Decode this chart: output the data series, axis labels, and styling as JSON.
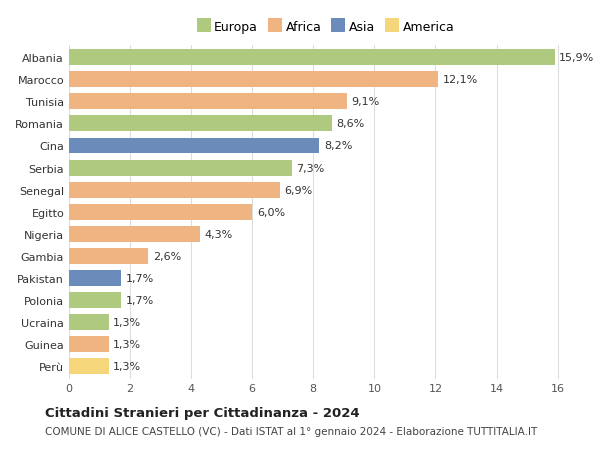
{
  "countries": [
    "Albania",
    "Marocco",
    "Tunisia",
    "Romania",
    "Cina",
    "Serbia",
    "Senegal",
    "Egitto",
    "Nigeria",
    "Gambia",
    "Pakistan",
    "Polonia",
    "Ucraina",
    "Guinea",
    "Perù"
  ],
  "values": [
    15.9,
    12.1,
    9.1,
    8.6,
    8.2,
    7.3,
    6.9,
    6.0,
    4.3,
    2.6,
    1.7,
    1.7,
    1.3,
    1.3,
    1.3
  ],
  "labels": [
    "15,9%",
    "12,1%",
    "9,1%",
    "8,6%",
    "8,2%",
    "7,3%",
    "6,9%",
    "6,0%",
    "4,3%",
    "2,6%",
    "1,7%",
    "1,7%",
    "1,3%",
    "1,3%",
    "1,3%"
  ],
  "continents": [
    "Europa",
    "Africa",
    "Africa",
    "Europa",
    "Asia",
    "Europa",
    "Africa",
    "Africa",
    "Africa",
    "Africa",
    "Asia",
    "Europa",
    "Europa",
    "Africa",
    "America"
  ],
  "colors": {
    "Europa": "#afc97e",
    "Africa": "#f0b482",
    "Asia": "#6b8cba",
    "America": "#f5d67a"
  },
  "xlim": [
    0,
    16.8
  ],
  "xticks": [
    0,
    2,
    4,
    6,
    8,
    10,
    12,
    14,
    16
  ],
  "title1": "Cittadini Stranieri per Cittadinanza - 2024",
  "title2": "COMUNE DI ALICE CASTELLO (VC) - Dati ISTAT al 1° gennaio 2024 - Elaborazione TUTTITALIA.IT",
  "background_color": "#ffffff",
  "grid_color": "#dddddd",
  "bar_height": 0.72,
  "label_fontsize": 8,
  "tick_fontsize": 8,
  "legend_fontsize": 9,
  "title1_fontsize": 9.5,
  "title2_fontsize": 7.5
}
